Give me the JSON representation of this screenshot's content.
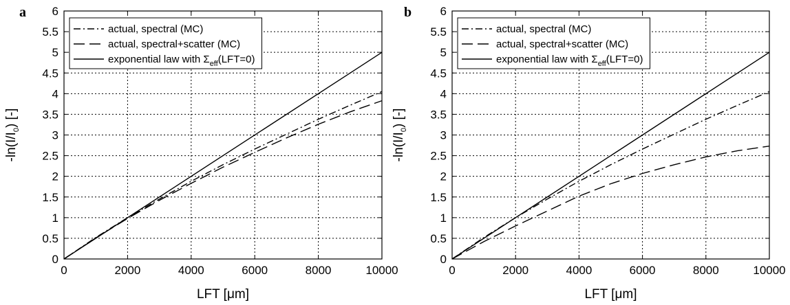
{
  "chart_data": [
    {
      "panel": "a",
      "type": "line",
      "xlabel": {
        "text": "LFT [",
        "unit": "μm",
        "close": "]"
      },
      "ylabel": {
        "pre": "-ln(I/I",
        "sub": "0",
        "post": ") [-]"
      },
      "xlim": [
        0,
        10000
      ],
      "ylim": [
        0,
        6
      ],
      "xticks": [
        0,
        2000,
        4000,
        6000,
        8000,
        10000
      ],
      "xtick_labels": [
        "0",
        "2000",
        "4000",
        "6000",
        "8000",
        "10000"
      ],
      "yticks": [
        0,
        0.5,
        1,
        1.5,
        2,
        2.5,
        3,
        3.5,
        4,
        4.5,
        5,
        5.5,
        6
      ],
      "ytick_labels": [
        "0",
        "0.5",
        "1",
        "1.5",
        "2",
        "2.5",
        "3",
        "3.5",
        "4",
        "4.5",
        "5",
        "5.5",
        "6"
      ],
      "grid": true,
      "legend_position": "top-left",
      "series": [
        {
          "name": "actual, spectral (MC)",
          "style": "dashdot",
          "x": [
            0,
            1000,
            2000,
            3000,
            4000,
            5000,
            6000,
            7000,
            8000,
            9000,
            10000
          ],
          "y": [
            0,
            0.52,
            1.0,
            1.45,
            1.88,
            2.28,
            2.66,
            3.02,
            3.38,
            3.72,
            4.05
          ]
        },
        {
          "name": "actual, spectral+scatter (MC)",
          "style": "dashed",
          "x": [
            0,
            1000,
            2000,
            3000,
            4000,
            5000,
            6000,
            7000,
            8000,
            9000,
            10000
          ],
          "y": [
            0,
            0.51,
            0.98,
            1.42,
            1.83,
            2.22,
            2.58,
            2.93,
            3.26,
            3.56,
            3.83
          ]
        },
        {
          "name": "exponential law with Σ(LFT=0)",
          "name_parts": {
            "pre": "exponential law with Σ",
            "sub": "eff",
            "post": "(LFT=0)"
          },
          "style": "solid",
          "x": [
            0,
            10000
          ],
          "y": [
            0,
            5
          ]
        }
      ]
    },
    {
      "panel": "b",
      "type": "line",
      "xlabel": {
        "text": "LFT [",
        "unit": "μm",
        "close": "]"
      },
      "ylabel": {
        "pre": "-ln(I/I",
        "sub": "0",
        "post": ") [-]"
      },
      "xlim": [
        0,
        10000
      ],
      "ylim": [
        0,
        6
      ],
      "xticks": [
        0,
        2000,
        4000,
        6000,
        8000,
        10000
      ],
      "xtick_labels": [
        "0",
        "2000",
        "4000",
        "6000",
        "8000",
        "10000"
      ],
      "yticks": [
        0,
        0.5,
        1,
        1.5,
        2,
        2.5,
        3,
        3.5,
        4,
        4.5,
        5,
        5.5,
        6
      ],
      "ytick_labels": [
        "0",
        "0.5",
        "1",
        "1.5",
        "2",
        "2.5",
        "3",
        "3.5",
        "4",
        "4.5",
        "5",
        "5.5",
        "6"
      ],
      "grid": true,
      "legend_position": "top-left",
      "series": [
        {
          "name": "actual, spectral (MC)",
          "style": "dashdot",
          "x": [
            0,
            1000,
            2000,
            3000,
            4000,
            5000,
            6000,
            7000,
            8000,
            9000,
            10000
          ],
          "y": [
            0,
            0.52,
            1.0,
            1.45,
            1.88,
            2.28,
            2.66,
            3.02,
            3.38,
            3.72,
            4.05
          ]
        },
        {
          "name": "actual, spectral+scatter (MC)",
          "style": "dashed",
          "x": [
            0,
            1000,
            2000,
            3000,
            4000,
            5000,
            6000,
            7000,
            8000,
            9000,
            10000
          ],
          "y": [
            0,
            0.42,
            0.8,
            1.16,
            1.52,
            1.82,
            2.07,
            2.28,
            2.47,
            2.62,
            2.73
          ]
        },
        {
          "name": "exponential law with Σ(LFT=0)",
          "name_parts": {
            "pre": "exponential law with Σ",
            "sub": "eff",
            "post": "(LFT=0)"
          },
          "style": "solid",
          "x": [
            0,
            10000
          ],
          "y": [
            0,
            5
          ]
        }
      ]
    }
  ]
}
